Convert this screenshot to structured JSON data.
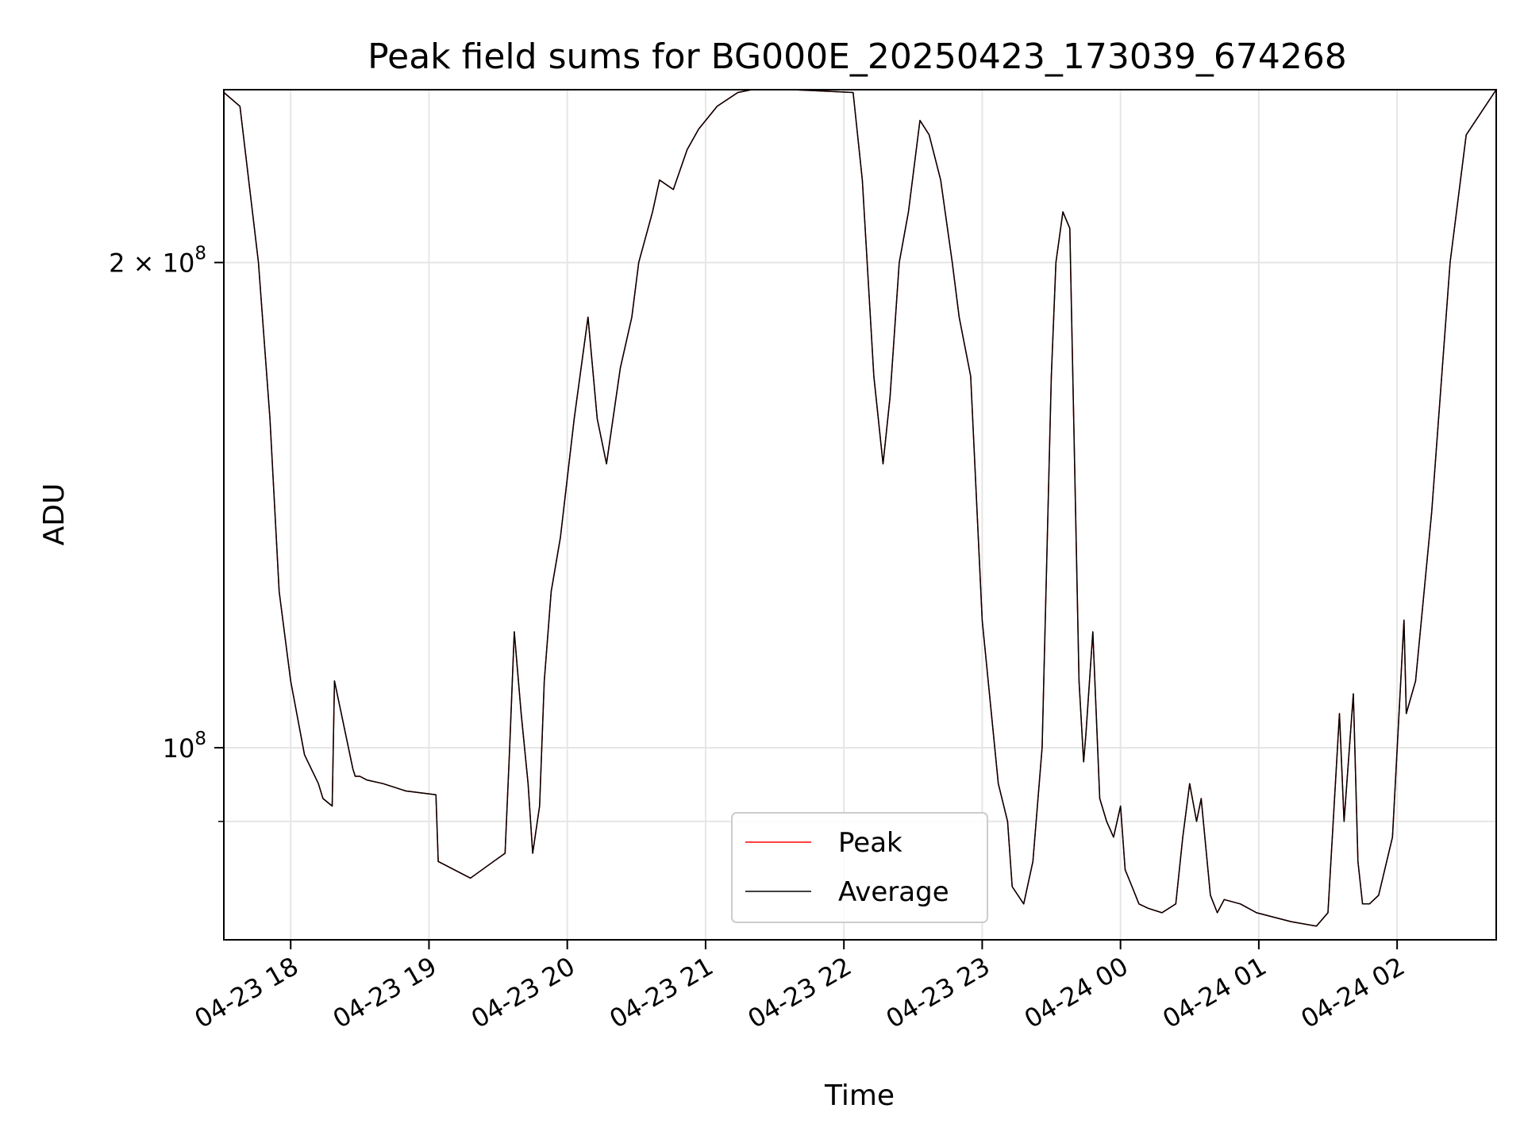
{
  "chart_data": {
    "type": "line",
    "title": "Peak field sums for BG000E_20250423_173039_674268",
    "xlabel": "Time",
    "ylabel": "ADU",
    "y_scale": "log",
    "grid": true,
    "legend_position": "lower-center",
    "xlim": [
      "2025-04-23 17:31",
      "2025-04-24 02:43"
    ],
    "ylim": [
      76000000,
      256000000
    ],
    "x_ticks": [
      {
        "value": "2025-04-23 18:00",
        "label": "04-23 18"
      },
      {
        "value": "2025-04-23 19:00",
        "label": "04-23 19"
      },
      {
        "value": "2025-04-23 20:00",
        "label": "04-23 20"
      },
      {
        "value": "2025-04-23 21:00",
        "label": "04-23 21"
      },
      {
        "value": "2025-04-23 22:00",
        "label": "04-23 22"
      },
      {
        "value": "2025-04-23 23:00",
        "label": "04-23 23"
      },
      {
        "value": "2025-04-24 00:00",
        "label": "04-24 00"
      },
      {
        "value": "2025-04-24 01:00",
        "label": "04-24 01"
      },
      {
        "value": "2025-04-24 02:00",
        "label": "04-24 02"
      }
    ],
    "y_ticks": [
      {
        "value": 100000000,
        "label_base": "10",
        "label_exp": "8"
      },
      {
        "value": 200000000,
        "label_base": "2 × 10",
        "label_exp": "8"
      }
    ],
    "y_minor_gridlines": [
      90000000
    ],
    "x": [
      "2025-04-23 17:31",
      "2025-04-23 17:38",
      "2025-04-23 17:46",
      "2025-04-23 17:51",
      "2025-04-23 17:55",
      "2025-04-23 18:00",
      "2025-04-23 18:06",
      "2025-04-23 18:12",
      "2025-04-23 18:14",
      "2025-04-23 18:18",
      "2025-04-23 18:19",
      "2025-04-23 18:27",
      "2025-04-23 18:28",
      "2025-04-23 18:30",
      "2025-04-23 18:33",
      "2025-04-23 18:40",
      "2025-04-23 18:50",
      "2025-04-23 19:03",
      "2025-04-23 19:04",
      "2025-04-23 19:18",
      "2025-04-23 19:28",
      "2025-04-23 19:33",
      "2025-04-23 19:35",
      "2025-04-23 19:37",
      "2025-04-23 19:40",
      "2025-04-23 19:43",
      "2025-04-23 19:45",
      "2025-04-23 19:48",
      "2025-04-23 19:50",
      "2025-04-23 19:53",
      "2025-04-23 19:57",
      "2025-04-23 20:03",
      "2025-04-23 20:09",
      "2025-04-23 20:13",
      "2025-04-23 20:17",
      "2025-04-23 20:23",
      "2025-04-23 20:28",
      "2025-04-23 20:31",
      "2025-04-23 20:37",
      "2025-04-23 20:40",
      "2025-04-23 20:46",
      "2025-04-23 20:52",
      "2025-04-23 20:57",
      "2025-04-23 21:05",
      "2025-04-23 21:14",
      "2025-04-23 21:20",
      "2025-04-23 21:38",
      "2025-04-23 22:04",
      "2025-04-23 22:08",
      "2025-04-23 22:13",
      "2025-04-23 22:17",
      "2025-04-23 22:20",
      "2025-04-23 22:24",
      "2025-04-23 22:28",
      "2025-04-23 22:33",
      "2025-04-23 22:37",
      "2025-04-23 22:42",
      "2025-04-23 22:47",
      "2025-04-23 22:50",
      "2025-04-23 22:55",
      "2025-04-23 23:00",
      "2025-04-23 23:04",
      "2025-04-23 23:07",
      "2025-04-23 23:11",
      "2025-04-23 23:13",
      "2025-04-23 23:18",
      "2025-04-23 23:22",
      "2025-04-23 23:26",
      "2025-04-23 23:30",
      "2025-04-23 23:32",
      "2025-04-23 23:35",
      "2025-04-23 23:38",
      "2025-04-23 23:42",
      "2025-04-23 23:44",
      "2025-04-23 23:45",
      "2025-04-23 23:48",
      "2025-04-23 23:51",
      "2025-04-23 23:54",
      "2025-04-23 23:57",
      "2025-04-24 00:00",
      "2025-04-24 00:02",
      "2025-04-24 00:05",
      "2025-04-24 00:08",
      "2025-04-24 00:12",
      "2025-04-24 00:18",
      "2025-04-24 00:24",
      "2025-04-24 00:27",
      "2025-04-24 00:30",
      "2025-04-24 00:33",
      "2025-04-24 00:35",
      "2025-04-24 00:39",
      "2025-04-24 00:42",
      "2025-04-24 00:45",
      "2025-04-24 00:52",
      "2025-04-24 00:59",
      "2025-04-24 01:14",
      "2025-04-24 01:25",
      "2025-04-24 01:30",
      "2025-04-24 01:35",
      "2025-04-24 01:37",
      "2025-04-24 01:41",
      "2025-04-24 01:43",
      "2025-04-24 01:45",
      "2025-04-24 01:48",
      "2025-04-24 01:52",
      "2025-04-24 01:58",
      "2025-04-24 02:03",
      "2025-04-24 02:04",
      "2025-04-24 02:08",
      "2025-04-24 02:15",
      "2025-04-24 02:23",
      "2025-04-24 02:30",
      "2025-04-24 02:43"
    ],
    "series": [
      {
        "name": "Peak",
        "color": "#ff0000",
        "values": [
          255000000,
          250000000,
          200000000,
          160000000,
          125000000,
          110000000,
          99000000,
          95000000,
          93000000,
          92000000,
          110000000,
          97000000,
          96000000,
          96000000,
          95500000,
          95000000,
          94000000,
          93500000,
          85000000,
          83000000,
          85000000,
          86000000,
          100000000,
          118000000,
          105000000,
          95000000,
          86000000,
          92000000,
          110000000,
          125000000,
          135000000,
          160000000,
          185000000,
          160000000,
          150000000,
          172000000,
          185000000,
          200000000,
          215000000,
          225000000,
          222000000,
          235000000,
          242000000,
          250000000,
          255000000,
          256000000,
          256000000,
          255000000,
          225000000,
          170000000,
          150000000,
          165000000,
          200000000,
          215000000,
          245000000,
          240000000,
          225000000,
          200000000,
          185000000,
          170000000,
          120000000,
          105000000,
          95000000,
          90000000,
          82000000,
          80000000,
          85000000,
          100000000,
          170000000,
          200000000,
          215000000,
          210000000,
          110000000,
          98000000,
          102000000,
          118000000,
          93000000,
          90000000,
          88000000,
          92000000,
          84000000,
          82000000,
          80000000,
          79500000,
          79000000,
          80000000,
          88000000,
          95000000,
          90000000,
          93000000,
          81000000,
          79000000,
          80500000,
          80000000,
          79000000,
          78000000,
          77500000,
          79000000,
          105000000,
          90000000,
          108000000,
          85000000,
          80000000,
          80000000,
          81000000,
          88000000,
          120000000,
          105000000,
          110000000,
          140000000,
          200000000,
          240000000,
          256000000
        ]
      },
      {
        "name": "Average",
        "color": "#000000",
        "values": [
          255000000,
          250000000,
          200000000,
          160000000,
          125000000,
          110000000,
          99000000,
          95000000,
          93000000,
          92000000,
          110000000,
          97000000,
          96000000,
          96000000,
          95500000,
          95000000,
          94000000,
          93500000,
          85000000,
          83000000,
          85000000,
          86000000,
          100000000,
          118000000,
          105000000,
          95000000,
          86000000,
          92000000,
          110000000,
          125000000,
          135000000,
          160000000,
          185000000,
          160000000,
          150000000,
          172000000,
          185000000,
          200000000,
          215000000,
          225000000,
          222000000,
          235000000,
          242000000,
          250000000,
          255000000,
          256000000,
          256000000,
          255000000,
          225000000,
          170000000,
          150000000,
          165000000,
          200000000,
          215000000,
          245000000,
          240000000,
          225000000,
          200000000,
          185000000,
          170000000,
          120000000,
          105000000,
          95000000,
          90000000,
          82000000,
          80000000,
          85000000,
          100000000,
          170000000,
          200000000,
          215000000,
          210000000,
          110000000,
          98000000,
          102000000,
          118000000,
          93000000,
          90000000,
          88000000,
          92000000,
          84000000,
          82000000,
          80000000,
          79500000,
          79000000,
          80000000,
          88000000,
          95000000,
          90000000,
          93000000,
          81000000,
          79000000,
          80500000,
          80000000,
          79000000,
          78000000,
          77500000,
          79000000,
          105000000,
          90000000,
          108000000,
          85000000,
          80000000,
          80000000,
          81000000,
          88000000,
          120000000,
          105000000,
          110000000,
          140000000,
          200000000,
          240000000,
          256000000
        ]
      }
    ]
  }
}
